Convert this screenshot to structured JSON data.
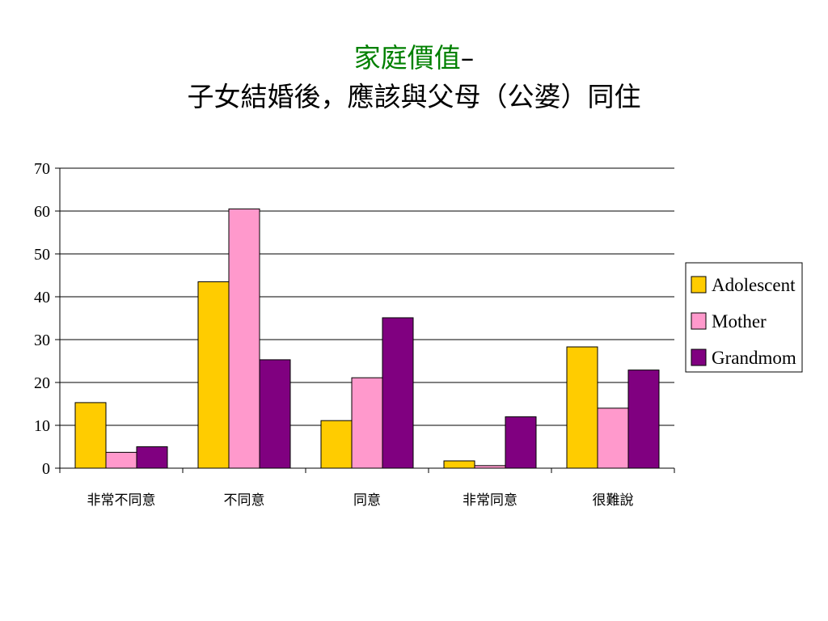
{
  "title": {
    "part1": "家庭價值",
    "separator": "–",
    "line2": "子女結婚後，應該與父母（公婆）同住"
  },
  "chart_data": {
    "type": "bar",
    "title": "家庭價值– 子女結婚後，應該與父母（公婆）同住",
    "xlabel": "",
    "ylabel": "",
    "categories": [
      "非常不同意",
      "不同意",
      "同意",
      "非常同意",
      "很難說"
    ],
    "series": [
      {
        "name": "Adolescent",
        "color": "#FFCC00",
        "values": [
          15.3,
          43.5,
          11.1,
          1.7,
          28.3
        ]
      },
      {
        "name": "Mother",
        "color": "#FF99CC",
        "values": [
          3.7,
          60.5,
          21.1,
          0.6,
          14.0
        ]
      },
      {
        "name": "Grandmom",
        "color": "#800080",
        "values": [
          5.0,
          25.3,
          35.1,
          12.0,
          22.9
        ]
      }
    ],
    "ylim": [
      0,
      70
    ],
    "yticks": [
      0,
      10,
      20,
      30,
      40,
      50,
      60,
      70
    ],
    "grid": true,
    "legend": "right"
  }
}
